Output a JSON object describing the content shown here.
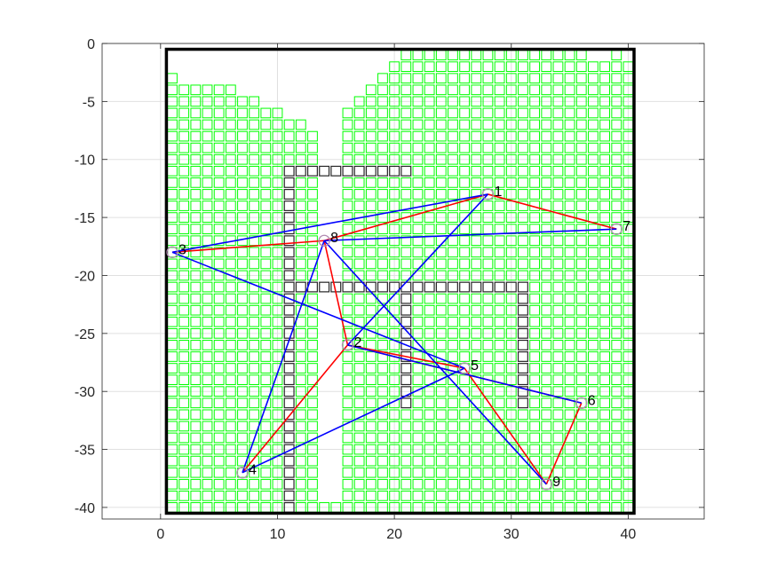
{
  "chart_data": {
    "type": "scatter",
    "title": "",
    "xlabel": "",
    "ylabel": "",
    "xlim": [
      -5,
      46.5
    ],
    "ylim": [
      -41,
      0
    ],
    "x_ticks": [
      0,
      10,
      20,
      30,
      40
    ],
    "y_ticks": [
      0,
      -5,
      -10,
      -15,
      -20,
      -25,
      -30,
      -35,
      -40
    ],
    "grid": true,
    "legend": "none",
    "colors": {
      "free_cell": "#00ff00",
      "obstacle_cell": "#262626",
      "boundary": "#000000",
      "red_path": "#ff0000",
      "blue_path": "#0000ff",
      "node_marker": "#b08ab0"
    },
    "nodes": [
      {
        "label": "1",
        "x": 28,
        "y": -13
      },
      {
        "label": "2",
        "x": 16,
        "y": -26
      },
      {
        "label": "3",
        "x": 1,
        "y": -18
      },
      {
        "label": "4",
        "x": 7,
        "y": -37
      },
      {
        "label": "5",
        "x": 26,
        "y": -28
      },
      {
        "label": "6",
        "x": 36,
        "y": -31
      },
      {
        "label": "7",
        "x": 39,
        "y": -16
      },
      {
        "label": "8",
        "x": 14,
        "y": -17
      },
      {
        "label": "9",
        "x": 33,
        "y": -38
      }
    ],
    "series": [
      {
        "color": "#ff0000",
        "edges": [
          [
            1,
            8
          ],
          [
            8,
            3
          ],
          [
            1,
            7
          ],
          [
            8,
            2
          ],
          [
            2,
            4
          ],
          [
            2,
            5
          ],
          [
            2,
            6
          ],
          [
            5,
            9
          ],
          [
            6,
            9
          ]
        ]
      },
      {
        "color": "#0000ff",
        "edges": [
          [
            3,
            1
          ],
          [
            3,
            5
          ],
          [
            8,
            7
          ],
          [
            8,
            4
          ],
          [
            8,
            9
          ],
          [
            1,
            2
          ],
          [
            2,
            6
          ],
          [
            4,
            5
          ]
        ]
      }
    ],
    "boundary": {
      "x": [
        0.5,
        40.5
      ],
      "y": [
        -40.5,
        -0.5
      ]
    },
    "obstacles": [
      {
        "x": [
          11,
          11
        ],
        "y": [
          -11,
          -40
        ]
      },
      {
        "x": [
          12,
          21
        ],
        "y": [
          -11,
          -11
        ]
      },
      {
        "x": [
          12,
          31
        ],
        "y": [
          -21,
          -21
        ]
      },
      {
        "x": [
          21,
          21
        ],
        "y": [
          -22,
          -31
        ]
      },
      {
        "x": [
          31,
          31
        ],
        "y": [
          -22,
          -31
        ]
      }
    ],
    "free_space": {
      "x_range": [
        1,
        40
      ],
      "y_range": [
        -1,
        -40
      ],
      "column_top_rows": [
        -3,
        -4,
        -4,
        -4,
        -4,
        -4,
        -5,
        -5,
        -6,
        -6,
        -7,
        -7,
        -8,
        -40,
        -40,
        -6,
        -5,
        -4,
        -3,
        -2,
        -1,
        -1,
        -1,
        -1,
        -1,
        -1,
        -1,
        -1,
        -1,
        -1,
        -1,
        -1,
        -1,
        -1,
        -1,
        -1,
        -1,
        -2,
        -1,
        -2
      ],
      "missing_cells": [
        {
          "x": 37,
          "y": -1
        }
      ]
    }
  }
}
